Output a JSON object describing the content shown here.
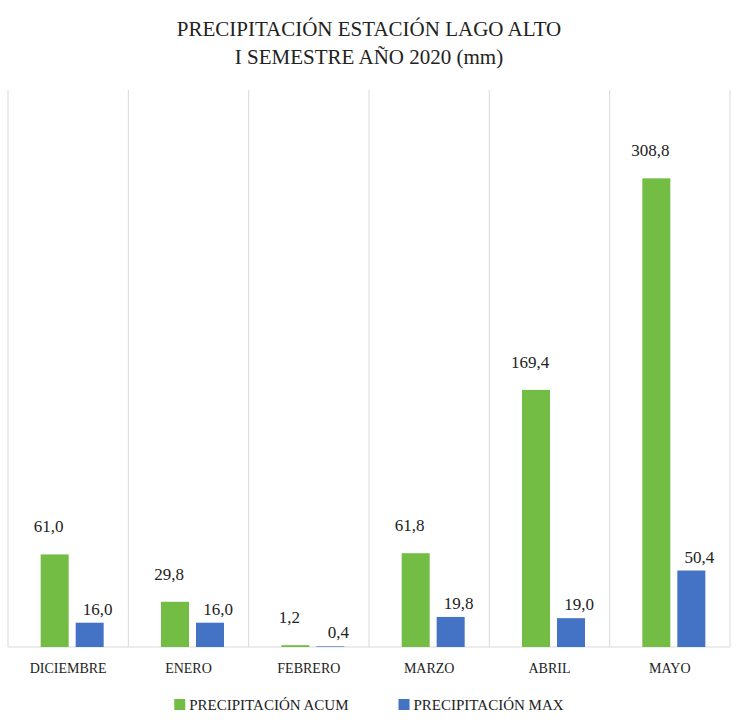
{
  "chart_data": {
    "type": "bar",
    "title": "PRECIPITACIÓN ESTACIÓN  LAGO ALTO\nI SEMESTRE AÑO 2020 (mm)",
    "categories": [
      "DICIEMBRE",
      "ENERO",
      "FEBRERO",
      "MARZO",
      "ABRIL",
      "MAYO"
    ],
    "series": [
      {
        "name": "PRECIPITACIÓN ACUM",
        "color": "#74bd45",
        "values": [
          61.0,
          29.8,
          1.2,
          61.8,
          169.4,
          308.8
        ],
        "value_labels": [
          "61,0",
          "29,8",
          "1,2",
          "61,8",
          "169,4",
          "308,8"
        ]
      },
      {
        "name": "PRECIPITACIÓN  MAX",
        "color": "#4472c4",
        "values": [
          16.0,
          16.0,
          0.4,
          19.8,
          19.0,
          50.4
        ],
        "value_labels": [
          "16,0",
          "16,0",
          "0,4",
          "19,8",
          "19,0",
          "50,4"
        ]
      }
    ],
    "ylim": [
      0,
      367
    ],
    "grid": true,
    "legend": "bottom",
    "data_labels": true,
    "tick_labels": "x"
  }
}
